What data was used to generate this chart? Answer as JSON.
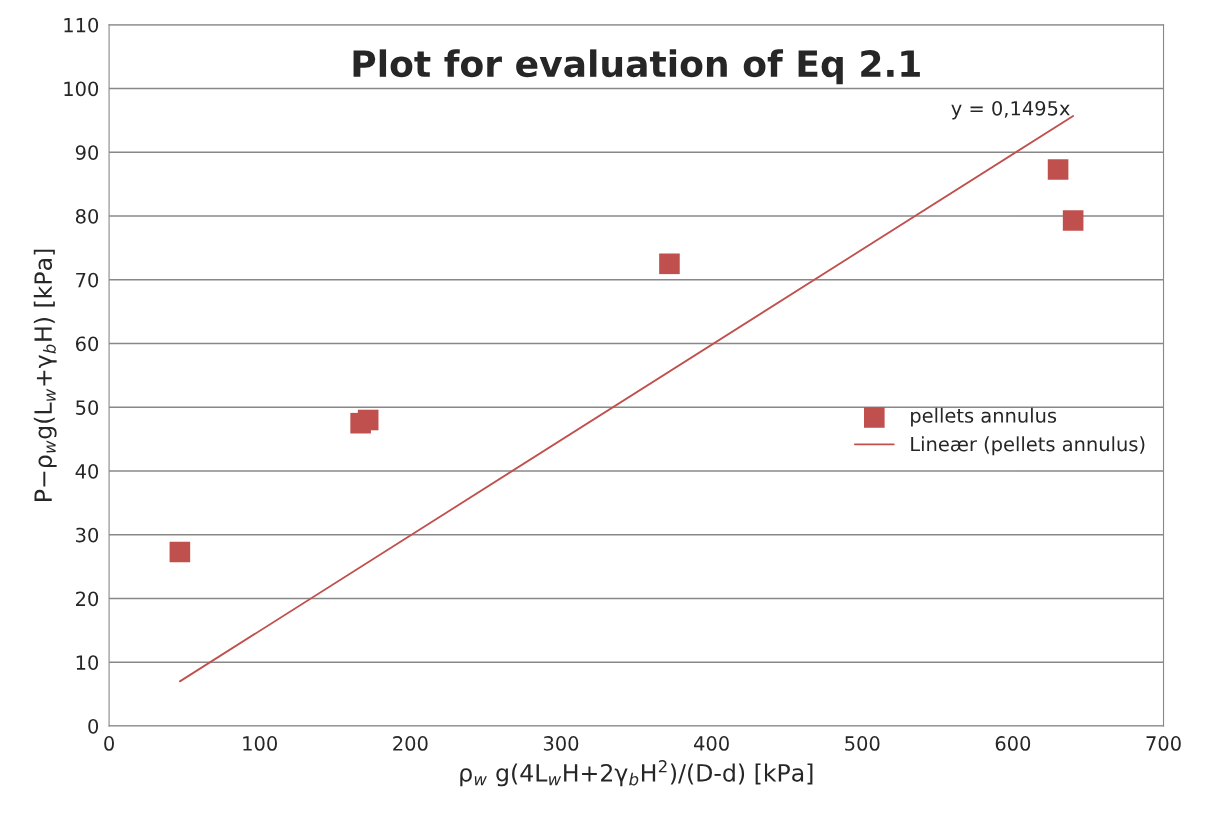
{
  "chart_data": {
    "type": "scatter",
    "title": "Plot for evaluation of Eq 2.1",
    "xlabel": "ρ$_{w}$ g(4L$_{w}$H+2γ$_{b}$H$^{2}$)/(D-d) [kPa]",
    "ylabel": "P−ρ$_{w}$g(L$_{w}$+γ$_{b}$H) [kPa]",
    "series": [
      {
        "name": "pellets annulus",
        "color": "#c0504d",
        "marker": "square",
        "x": [
          47,
          167,
          172,
          372,
          630,
          640
        ],
        "values": [
          27.3,
          47.5,
          48,
          72.5,
          87.3,
          79.3
        ]
      },
      {
        "name": "Lineær (pellets annulus)",
        "type": "line",
        "color": "#c0504d",
        "marker": "none",
        "line_style": "solid",
        "x": [
          47,
          640
        ],
        "values": [
          7.0,
          95.7
        ]
      }
    ],
    "annotations": [
      "y = 0,1495x"
    ],
    "xlim": [
      0,
      700
    ],
    "xticks": [
      0,
      100,
      200,
      300,
      400,
      500,
      600,
      700
    ],
    "ylim": [
      0,
      110
    ],
    "yticks": [
      0,
      10,
      20,
      30,
      40,
      50,
      60,
      70,
      80,
      90,
      100,
      110
    ],
    "grid": "y",
    "legend": "right"
  }
}
